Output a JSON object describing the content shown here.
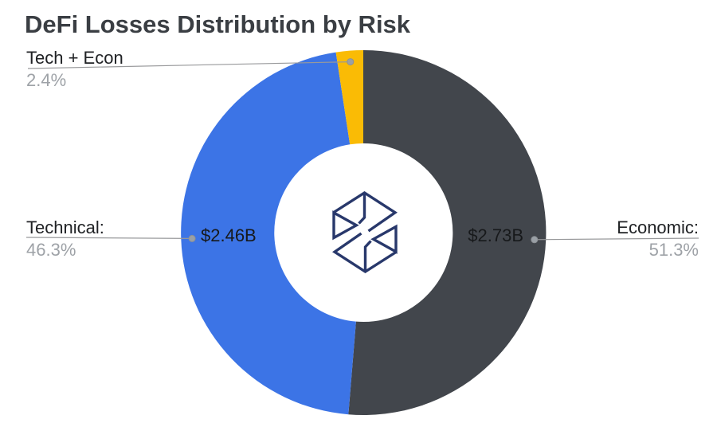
{
  "title": "DeFi Losses Distribution by Risk",
  "chart_data": {
    "type": "pie",
    "subtype": "donut",
    "title": "DeFi Losses Distribution by Risk",
    "direction": "clockwise",
    "start_angle_deg": 0,
    "legend_position": "callout-labels",
    "center_logo": "cube-wireframe-logo",
    "slices": [
      {
        "id": "economic",
        "label": "Economic:",
        "pct": 51.3,
        "value": "$2.73B",
        "color": "#42464c"
      },
      {
        "id": "technical",
        "label": "Technical:",
        "pct": 46.3,
        "value": "$2.46B",
        "color": "#3c74e6"
      },
      {
        "id": "tech_econ",
        "label": "Tech + Econ",
        "pct": 2.4,
        "value": "",
        "color": "#fabb05"
      }
    ]
  },
  "callouts": {
    "tech_econ": {
      "name": "Tech + Econ",
      "pct": "2.4%"
    },
    "technical": {
      "name": "Technical:",
      "pct": "46.3%"
    },
    "economic": {
      "name": "Economic:",
      "pct": "51.3%"
    }
  },
  "values": {
    "technical": "$2.46B",
    "economic": "$2.73B"
  },
  "colors": {
    "economic_slice": "#42464c",
    "technical_slice": "#3c74e6",
    "tech_econ_slice": "#fabb05",
    "leader_line": "#98999b",
    "leader_dot": "#9aa0a6",
    "title_text": "#3a3e43",
    "label_text": "#202225",
    "pct_text": "#9ea2a7",
    "logo_navy": "#28386b"
  }
}
